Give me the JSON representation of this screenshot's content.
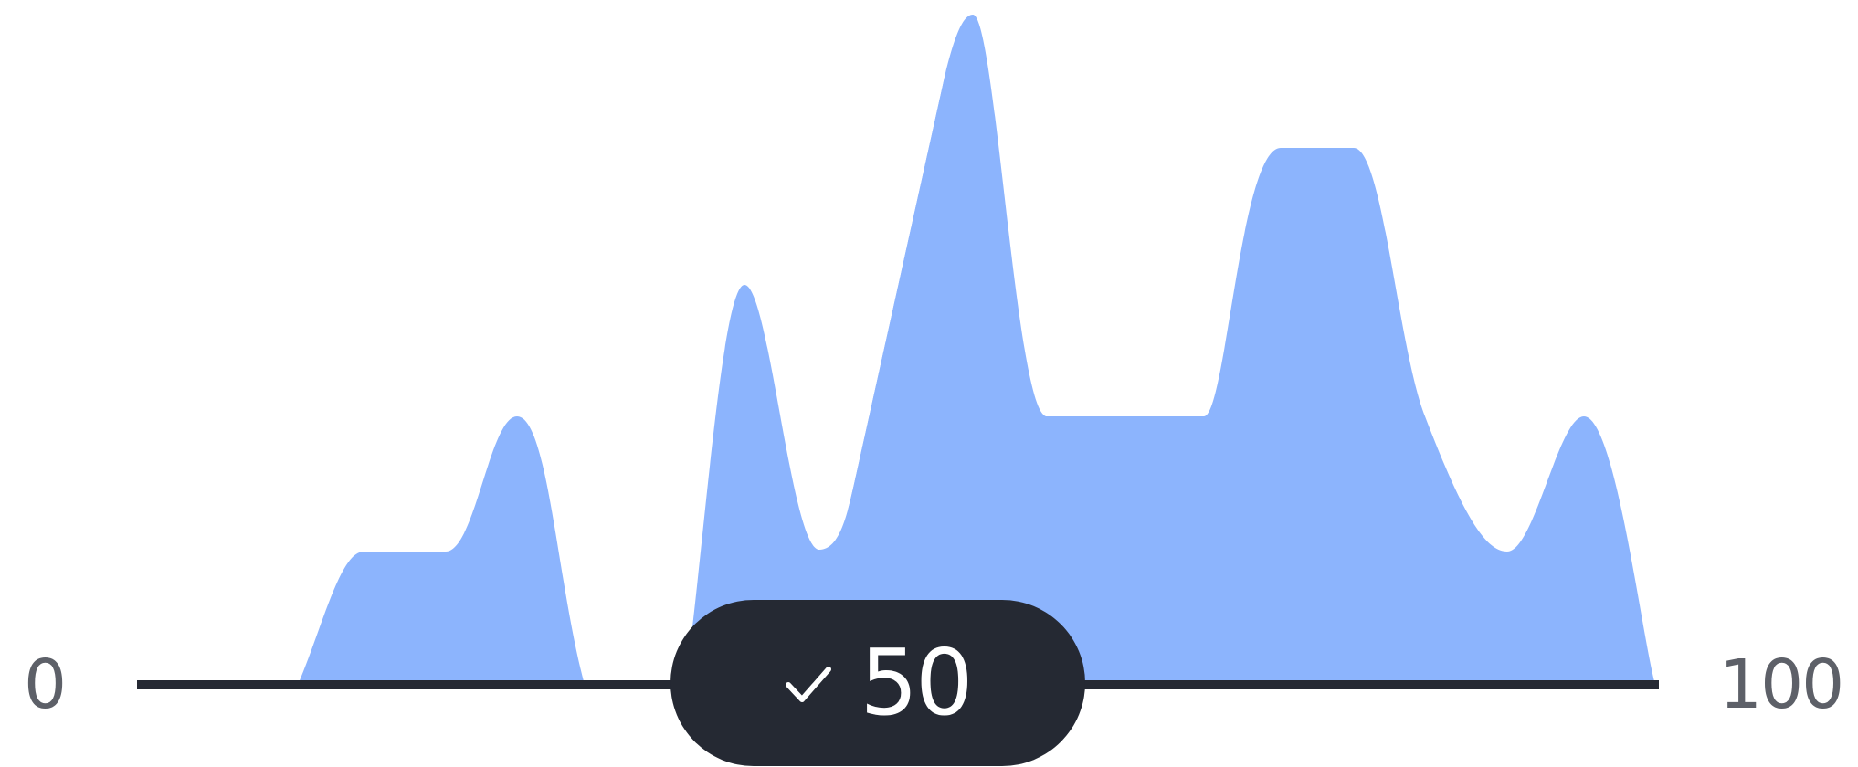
{
  "slider": {
    "min_label": "0",
    "max_label": "100",
    "value": 50,
    "value_label": "50",
    "thumb_icon": "check-icon"
  },
  "colors": {
    "distribution_fill": "#8cb4fd",
    "selected_band_fill": "#fe9fbf",
    "track": "#252933",
    "thumb_background": "#252933",
    "thumb_text": "#ffffff",
    "range_label": "#5d6068"
  }
}
